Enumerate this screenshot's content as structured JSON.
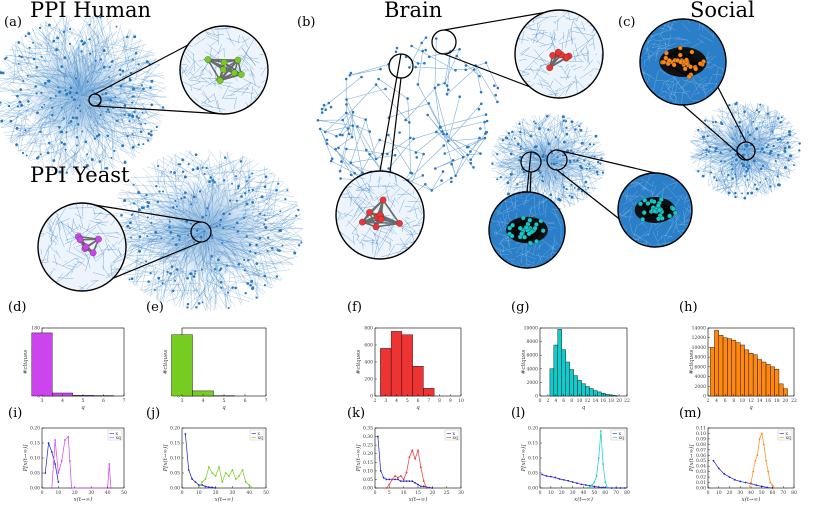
{
  "titles": {
    "ppi_human": "PPI  Human",
    "ppi_yeast": "PPI  Yeast",
    "brain": "Brain",
    "social": "Social"
  },
  "panel_labels": {
    "a": "(a)",
    "b": "(b)",
    "c": "(c)",
    "d": "(d)",
    "e": "(e)",
    "f": "(f)",
    "g": "(g)",
    "h": "(h)",
    "i": "(i)",
    "j": "(j)",
    "k": "(k)",
    "l": "(l)",
    "m": "(m)"
  },
  "colors": {
    "network": "#2878c0",
    "purple": "#cc44ee",
    "green": "#77cc22",
    "red": "#ee3333",
    "cyan": "#11cccc",
    "orange": "#ff8811",
    "blue_series": "#2222cc"
  },
  "chart_data": [
    {
      "id": "d",
      "type": "bar",
      "xlabel": "q",
      "ylabel": "#cliques",
      "categories": [
        "3",
        "4",
        "5",
        "6",
        "7"
      ],
      "values": [
        167,
        8,
        2,
        1,
        0
      ],
      "xticks": [
        "3",
        "4",
        "5",
        "6",
        "7"
      ],
      "ylim": [
        0,
        180
      ],
      "yticks": [
        "0",
        "20",
        "40",
        "60",
        "80",
        "100",
        "120",
        "140",
        "160",
        "180"
      ],
      "color": "#cc44ee"
    },
    {
      "id": "e",
      "type": "bar",
      "xlabel": "q",
      "ylabel": "#cliques",
      "categories": [
        "3",
        "4",
        "5",
        "6",
        "7"
      ],
      "values": [
        360,
        30,
        2,
        0,
        0
      ],
      "xticks": [
        "3",
        "4",
        "5",
        "6",
        "7"
      ],
      "ylim": [
        0,
        400
      ],
      "yticks": [
        "0",
        "100",
        "200",
        "300"
      ],
      "color": "#77cc22"
    },
    {
      "id": "f",
      "type": "bar",
      "xlabel": "q",
      "ylabel": "#cliques",
      "categories": [
        "3",
        "4",
        "5",
        "6",
        "7"
      ],
      "values": [
        560,
        760,
        720,
        350,
        90
      ],
      "xticks": [
        "2",
        "3",
        "4",
        "5",
        "6",
        "7",
        "8",
        "9",
        "10"
      ],
      "ylim": [
        0,
        800
      ],
      "yticks": [
        "0",
        "200",
        "400",
        "600",
        "800"
      ],
      "color": "#ee3333"
    },
    {
      "id": "g",
      "type": "bar",
      "xlabel": "q",
      "ylabel": "#cliques",
      "categories": [
        "3",
        "4",
        "5",
        "6",
        "7",
        "8",
        "9",
        "10",
        "11",
        "12",
        "13",
        "14",
        "15",
        "16",
        "17",
        "18",
        "19"
      ],
      "values": [
        4000,
        7500,
        9800,
        6800,
        5000,
        3900,
        3000,
        2300,
        1800,
        1400,
        1100,
        800,
        600,
        400,
        250,
        150,
        80
      ],
      "xticks": [
        "0",
        "2",
        "4",
        "6",
        "8",
        "10",
        "12",
        "14",
        "16",
        "18",
        "20",
        "22"
      ],
      "ylim": [
        0,
        10000
      ],
      "yticks": [
        "0",
        "2000",
        "4000",
        "6000",
        "8000",
        "10000"
      ],
      "color": "#11cccc"
    },
    {
      "id": "h",
      "type": "bar",
      "xlabel": "q",
      "ylabel": "#cliques",
      "categories": [
        "3",
        "4",
        "5",
        "6",
        "7",
        "8",
        "9",
        "10",
        "11",
        "12",
        "13",
        "14",
        "15",
        "16",
        "17",
        "18",
        "19",
        "20"
      ],
      "values": [
        10000,
        13500,
        12500,
        12000,
        11800,
        11500,
        11000,
        10500,
        9500,
        8800,
        8500,
        7500,
        7000,
        6500,
        6000,
        5500,
        2500,
        1500
      ],
      "xticks": [
        "2",
        "4",
        "6",
        "8",
        "10",
        "12",
        "14",
        "16",
        "18",
        "20",
        "22"
      ],
      "ylim": [
        0,
        14000
      ],
      "yticks": [
        "0",
        "2000",
        "4000",
        "6000",
        "8000",
        "10000",
        "12000",
        "14000"
      ],
      "color": "#ff8811"
    },
    {
      "id": "i",
      "type": "line",
      "xlabel": "x(t→∞)",
      "ylabel": "P[x(t→∞)]",
      "xlim": [
        0,
        50
      ],
      "ylim": [
        0,
        0.2
      ],
      "xticks": [
        "0",
        "10",
        "20",
        "30",
        "40",
        "50"
      ],
      "yticks": [
        "0.00",
        "0.05",
        "0.10",
        "0.15",
        "0.20"
      ],
      "series": [
        {
          "name": "x",
          "color": "#2222cc",
          "x": [
            2,
            4,
            6,
            8,
            10
          ],
          "y": [
            0.05,
            0.15,
            0.12,
            0.08,
            0.02
          ]
        },
        {
          "name": "xq",
          "color": "#cc44ee",
          "x": [
            6,
            8,
            10,
            12,
            14,
            16,
            17,
            18,
            40,
            41,
            42
          ],
          "y": [
            0.0,
            0.16,
            0.05,
            0.09,
            0.16,
            0.17,
            0.09,
            0.0,
            0.0,
            0.08,
            0.0
          ]
        }
      ]
    },
    {
      "id": "j",
      "type": "line",
      "xlabel": "x(t→∞)",
      "ylabel": "P[x(t→∞)]",
      "xlim": [
        0,
        50
      ],
      "ylim": [
        0,
        0.2
      ],
      "xticks": [
        "0",
        "10",
        "20",
        "30",
        "40",
        "50"
      ],
      "yticks": [
        "0.00",
        "0.05",
        "0.10",
        "0.15",
        "0.20"
      ],
      "series": [
        {
          "name": "x",
          "color": "#2222cc",
          "x": [
            2,
            4,
            6,
            8,
            10,
            12,
            14,
            16,
            18,
            20
          ],
          "y": [
            0.18,
            0.06,
            0.03,
            0.02,
            0.01,
            0.01,
            0.005,
            0.003,
            0.002,
            0.0
          ]
        },
        {
          "name": "xq",
          "color": "#77cc22",
          "x": [
            10,
            12,
            14,
            16,
            18,
            20,
            22,
            24,
            26,
            28,
            30,
            32,
            34,
            36,
            38,
            40,
            42
          ],
          "y": [
            0.0,
            0.02,
            0.03,
            0.07,
            0.05,
            0.04,
            0.07,
            0.02,
            0.05,
            0.04,
            0.06,
            0.03,
            0.04,
            0.06,
            0.02,
            0.01,
            0.0
          ]
        }
      ]
    },
    {
      "id": "k",
      "type": "line",
      "xlabel": "x(t→∞)",
      "ylabel": "P[x(t→∞)]",
      "xlim": [
        0,
        30
      ],
      "ylim": [
        0,
        0.35
      ],
      "xticks": [
        "0",
        "5",
        "10",
        "15",
        "20",
        "25",
        "30"
      ],
      "yticks": [
        "0.00",
        "0.05",
        "0.10",
        "0.15",
        "0.20",
        "0.25",
        "0.30",
        "0.35"
      ],
      "series": [
        {
          "name": "x",
          "color": "#2222cc",
          "x": [
            1,
            2,
            3,
            4,
            5,
            6,
            7,
            8,
            9,
            10,
            11,
            12,
            13,
            14,
            15,
            16,
            17,
            18,
            19,
            20
          ],
          "y": [
            0.3,
            0.1,
            0.06,
            0.05,
            0.05,
            0.05,
            0.05,
            0.05,
            0.04,
            0.04,
            0.04,
            0.04,
            0.04,
            0.03,
            0.02,
            0.01,
            0.01,
            0.005,
            0.002,
            0.0
          ]
        },
        {
          "name": "xq",
          "color": "#ee3333",
          "x": [
            4,
            5,
            6,
            7,
            8,
            9,
            10,
            11,
            12,
            13,
            14,
            15,
            16,
            17,
            18
          ],
          "y": [
            0.0,
            0.02,
            0.05,
            0.07,
            0.06,
            0.07,
            0.05,
            0.09,
            0.18,
            0.22,
            0.17,
            0.22,
            0.12,
            0.04,
            0.0
          ]
        }
      ]
    },
    {
      "id": "l",
      "type": "line",
      "xlabel": "x(t→∞)",
      "ylabel": "P[x(t→∞)]",
      "xlim": [
        0,
        80
      ],
      "ylim": [
        0,
        0.2
      ],
      "xticks": [
        "0",
        "10",
        "20",
        "30",
        "40",
        "50",
        "60",
        "70",
        "80"
      ],
      "yticks": [
        "0.00",
        "0.05",
        "0.10",
        "0.15",
        "0.20"
      ],
      "series": [
        {
          "name": "x",
          "color": "#2222cc",
          "x": [
            2,
            6,
            10,
            14,
            18,
            22,
            26,
            30,
            34,
            38,
            42,
            46,
            50,
            54,
            58,
            62,
            66,
            70,
            74,
            78
          ],
          "y": [
            0.045,
            0.04,
            0.038,
            0.035,
            0.03,
            0.027,
            0.024,
            0.02,
            0.016,
            0.012,
            0.01,
            0.008,
            0.005,
            0.003,
            0.002,
            0.001,
            0.0,
            0.0,
            0.0,
            0.0
          ]
        },
        {
          "name": "xq",
          "color": "#11cccc",
          "x": [
            44,
            46,
            48,
            50,
            52,
            54,
            56,
            58,
            60,
            62
          ],
          "y": [
            0.0,
            0.005,
            0.01,
            0.02,
            0.04,
            0.1,
            0.19,
            0.08,
            0.02,
            0.0
          ]
        }
      ]
    },
    {
      "id": "m",
      "type": "line",
      "xlabel": "x(t→∞)",
      "ylabel": "P[x(t→∞)]",
      "xlim": [
        0,
        80
      ],
      "ylim": [
        0,
        0.11
      ],
      "xticks": [
        "0",
        "10",
        "20",
        "30",
        "40",
        "50",
        "60",
        "70",
        "80"
      ],
      "yticks": [
        "0.00",
        "0.01",
        "0.02",
        "0.03",
        "0.04",
        "0.05",
        "0.06",
        "0.07",
        "0.08",
        "0.09",
        "0.10",
        "0.11"
      ],
      "series": [
        {
          "name": "x",
          "color": "#2222cc",
          "x": [
            5,
            10,
            15,
            20,
            25,
            30,
            35,
            40,
            45,
            50,
            55,
            60
          ],
          "y": [
            0.05,
            0.036,
            0.026,
            0.02,
            0.015,
            0.012,
            0.01,
            0.008,
            0.005,
            0.003,
            0.001,
            0.0
          ]
        },
        {
          "name": "xq",
          "color": "#ff8811",
          "x": [
            38,
            40,
            42,
            44,
            46,
            48,
            50,
            52,
            54,
            56,
            58,
            60,
            62
          ],
          "y": [
            0.0,
            0.01,
            0.03,
            0.05,
            0.06,
            0.09,
            0.1,
            0.08,
            0.05,
            0.03,
            0.01,
            0.005,
            0.0
          ]
        }
      ]
    }
  ]
}
